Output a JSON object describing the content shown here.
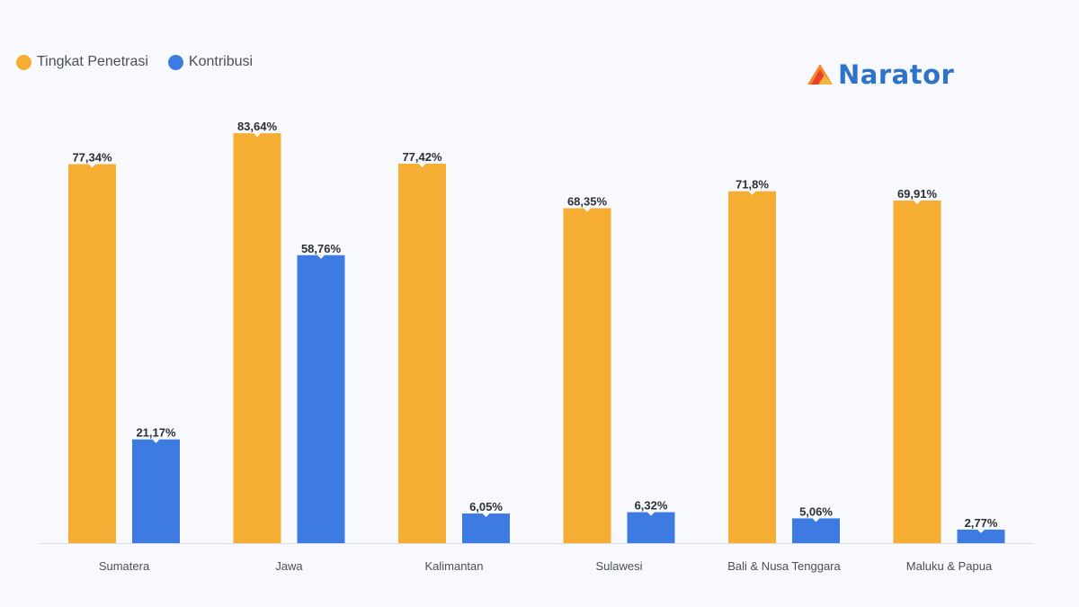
{
  "legend": {
    "items": [
      {
        "label": "Tingkat Penetrasi",
        "color": "#f5ae33"
      },
      {
        "label": "Kontribusi",
        "color": "#3d7be3"
      }
    ]
  },
  "logo": {
    "text": "Narator",
    "text_color": "#2f72c9",
    "icon": "triangle-logo-icon"
  },
  "chart_data": {
    "type": "bar",
    "categories": [
      "Sumatera",
      "Jawa",
      "Kalimantan",
      "Sulawesi",
      "Bali & Nusa Tenggara",
      "Maluku & Papua"
    ],
    "series": [
      {
        "name": "Tingkat Penetrasi",
        "color": "#f5ae33",
        "values": [
          77.34,
          83.64,
          77.42,
          68.35,
          71.8,
          69.91
        ],
        "labels": [
          "77,34%",
          "83,64%",
          "77,42%",
          "68,35%",
          "71,8%",
          "69,91%"
        ]
      },
      {
        "name": "Kontribusi",
        "color": "#3d7be3",
        "values": [
          21.17,
          58.76,
          6.05,
          6.32,
          5.06,
          2.77
        ],
        "labels": [
          "21,17%",
          "58,76%",
          "6,05%",
          "6,32%",
          "5,06%",
          "2,77%"
        ]
      }
    ],
    "ylim": [
      0,
      100
    ],
    "legend_position": "top-left",
    "grid": false
  }
}
